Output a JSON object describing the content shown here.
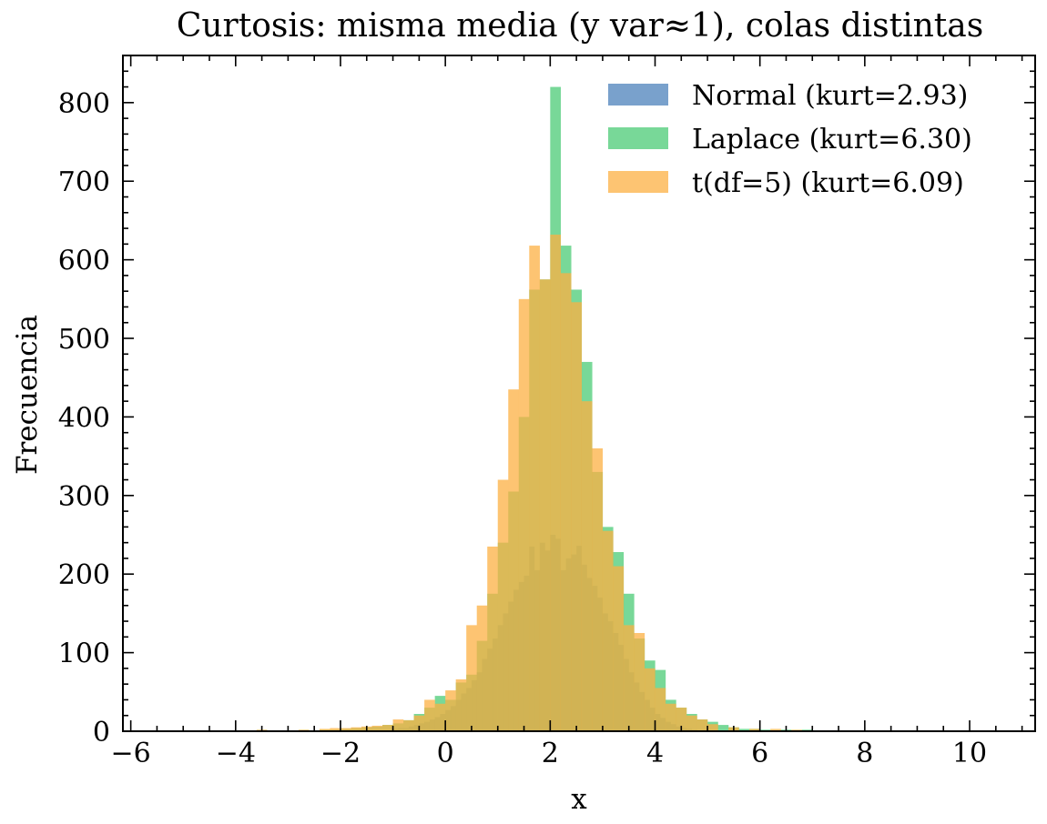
{
  "chart_data": {
    "type": "bar",
    "title": "Curtosis: misma media (y var≈1), colas distintas",
    "xlabel": "x",
    "ylabel": "Frecuencia",
    "xlim": [
      -6.15,
      11.25
    ],
    "ylim": [
      0,
      860
    ],
    "x_ticks": [
      "−6",
      "−4",
      "−2",
      "0",
      "2",
      "4",
      "6",
      "8",
      "10"
    ],
    "x_tick_values": [
      -6,
      -4,
      -2,
      0,
      2,
      4,
      6,
      8,
      10
    ],
    "y_ticks": [
      "0",
      "100",
      "200",
      "300",
      "400",
      "500",
      "600",
      "700",
      "800"
    ],
    "y_tick_values": [
      0,
      100,
      200,
      300,
      400,
      500,
      600,
      700,
      800
    ],
    "grid": false,
    "legend_position": "top-right",
    "series": [
      {
        "name": "Normal  (kurt=2.93)",
        "color": "#4c81bb",
        "opacity": 0.75,
        "bin_width": 0.1,
        "bins": [
          [
            -1.0,
            3
          ],
          [
            -0.9,
            4
          ],
          [
            -0.8,
            4
          ],
          [
            -0.7,
            6
          ],
          [
            -0.6,
            8
          ],
          [
            -0.5,
            10
          ],
          [
            -0.4,
            12
          ],
          [
            -0.3,
            15
          ],
          [
            -0.2,
            18
          ],
          [
            -0.1,
            22
          ],
          [
            0.0,
            27
          ],
          [
            0.1,
            32
          ],
          [
            0.2,
            40
          ],
          [
            0.3,
            48
          ],
          [
            0.4,
            55
          ],
          [
            0.5,
            65
          ],
          [
            0.6,
            75
          ],
          [
            0.7,
            92
          ],
          [
            0.8,
            105
          ],
          [
            0.9,
            118
          ],
          [
            1.0,
            135
          ],
          [
            1.1,
            150
          ],
          [
            1.2,
            165
          ],
          [
            1.3,
            180
          ],
          [
            1.4,
            190
          ],
          [
            1.5,
            198
          ],
          [
            1.6,
            235
          ],
          [
            1.7,
            205
          ],
          [
            1.8,
            240
          ],
          [
            1.9,
            230
          ],
          [
            2.0,
            250
          ],
          [
            2.1,
            245
          ],
          [
            2.2,
            205
          ],
          [
            2.3,
            220
          ],
          [
            2.4,
            225
          ],
          [
            2.5,
            236
          ],
          [
            2.6,
            212
          ],
          [
            2.7,
            195
          ],
          [
            2.8,
            185
          ],
          [
            2.9,
            170
          ],
          [
            3.0,
            150
          ],
          [
            3.1,
            140
          ],
          [
            3.2,
            125
          ],
          [
            3.3,
            110
          ],
          [
            3.4,
            92
          ],
          [
            3.5,
            75
          ],
          [
            3.6,
            62
          ],
          [
            3.7,
            50
          ],
          [
            3.8,
            40
          ],
          [
            3.9,
            30
          ],
          [
            4.0,
            22
          ],
          [
            4.1,
            17
          ],
          [
            4.2,
            12
          ],
          [
            4.3,
            9
          ],
          [
            4.4,
            6
          ],
          [
            4.5,
            4
          ],
          [
            4.6,
            3
          ],
          [
            4.7,
            2
          ]
        ]
      },
      {
        "name": "Laplace (kurt=6.30)",
        "color": "#3fc86c",
        "opacity": 0.7,
        "bin_width": 0.2,
        "bins": [
          [
            -4.0,
            1
          ],
          [
            -3.0,
            1
          ],
          [
            -2.4,
            2
          ],
          [
            -2.2,
            2
          ],
          [
            -2.0,
            3
          ],
          [
            -1.8,
            4
          ],
          [
            -1.6,
            5
          ],
          [
            -1.4,
            6
          ],
          [
            -1.2,
            8
          ],
          [
            -1.0,
            10
          ],
          [
            -0.8,
            14
          ],
          [
            -0.6,
            22
          ],
          [
            -0.4,
            30
          ],
          [
            -0.2,
            45
          ],
          [
            0.0,
            40
          ],
          [
            0.2,
            62
          ],
          [
            0.4,
            72
          ],
          [
            0.6,
            115
          ],
          [
            0.8,
            175
          ],
          [
            1.0,
            240
          ],
          [
            1.2,
            305
          ],
          [
            1.4,
            400
          ],
          [
            1.6,
            562
          ],
          [
            1.8,
            575
          ],
          [
            2.0,
            820
          ],
          [
            2.2,
            618
          ],
          [
            2.4,
            562
          ],
          [
            2.6,
            470
          ],
          [
            2.8,
            330
          ],
          [
            3.0,
            260
          ],
          [
            3.2,
            228
          ],
          [
            3.4,
            175
          ],
          [
            3.6,
            118
          ],
          [
            3.8,
            90
          ],
          [
            4.0,
            78
          ],
          [
            4.2,
            40
          ],
          [
            4.4,
            30
          ],
          [
            4.6,
            22
          ],
          [
            4.8,
            15
          ],
          [
            5.0,
            12
          ],
          [
            5.2,
            8
          ],
          [
            5.4,
            5
          ],
          [
            5.6,
            3
          ],
          [
            5.8,
            3
          ],
          [
            6.0,
            2
          ],
          [
            6.4,
            2
          ],
          [
            6.8,
            2
          ]
        ]
      },
      {
        "name": "t(df=5) (kurt=6.09)",
        "color": "#fcb043",
        "opacity": 0.75,
        "bin_width": 0.2,
        "bins": [
          [
            -5.6,
            1
          ],
          [
            -3.6,
            2
          ],
          [
            -2.8,
            2
          ],
          [
            -2.4,
            3
          ],
          [
            -2.2,
            4
          ],
          [
            -2.0,
            4
          ],
          [
            -1.8,
            5
          ],
          [
            -1.6,
            6
          ],
          [
            -1.4,
            7
          ],
          [
            -1.2,
            8
          ],
          [
            -1.0,
            15
          ],
          [
            -0.8,
            14
          ],
          [
            -0.6,
            20
          ],
          [
            -0.4,
            40
          ],
          [
            -0.2,
            35
          ],
          [
            0.0,
            52
          ],
          [
            0.2,
            66
          ],
          [
            0.4,
            135
          ],
          [
            0.6,
            160
          ],
          [
            0.8,
            235
          ],
          [
            1.0,
            320
          ],
          [
            1.2,
            435
          ],
          [
            1.4,
            550
          ],
          [
            1.6,
            618
          ],
          [
            1.8,
            575
          ],
          [
            2.0,
            632
          ],
          [
            2.2,
            583
          ],
          [
            2.4,
            546
          ],
          [
            2.6,
            420
          ],
          [
            2.8,
            360
          ],
          [
            3.0,
            255
          ],
          [
            3.2,
            210
          ],
          [
            3.4,
            135
          ],
          [
            3.6,
            125
          ],
          [
            3.8,
            80
          ],
          [
            4.0,
            55
          ],
          [
            4.2,
            35
          ],
          [
            4.4,
            30
          ],
          [
            4.6,
            20
          ],
          [
            4.8,
            15
          ],
          [
            5.0,
            9
          ],
          [
            5.4,
            5
          ],
          [
            5.8,
            3
          ],
          [
            6.2,
            3
          ],
          [
            6.6,
            2
          ],
          [
            7.0,
            1
          ]
        ]
      }
    ]
  }
}
